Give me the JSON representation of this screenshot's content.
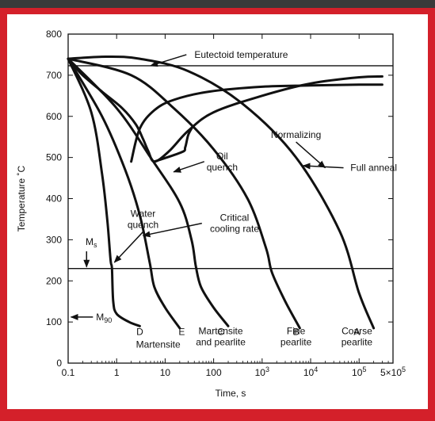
{
  "chart_data": {
    "type": "line",
    "title": "",
    "xlabel": "Time, s",
    "ylabel": "Temperature ˚C",
    "xscale": "log",
    "xlim": [
      0.1,
      500000
    ],
    "ylim": [
      0,
      800
    ],
    "grid": false,
    "x_ticks": [
      {
        "value": 0.1,
        "label": "0.1"
      },
      {
        "value": 1,
        "label": "1"
      },
      {
        "value": 10,
        "label": "10"
      },
      {
        "value": 100,
        "label": "100"
      },
      {
        "value": 1000,
        "label": "10",
        "sup": "3"
      },
      {
        "value": 10000,
        "label": "10",
        "sup": "4"
      },
      {
        "value": 100000,
        "label": "10",
        "sup": "5"
      },
      {
        "value": 500000,
        "label": "5×10",
        "sup": "5"
      }
    ],
    "y_ticks": [
      0,
      100,
      200,
      300,
      400,
      500,
      600,
      700,
      800
    ],
    "reference_lines": [
      {
        "name": "eutectoid",
        "y": 723
      },
      {
        "name": "ms",
        "y": 230
      }
    ],
    "transformation_curves": [
      {
        "name": "start",
        "points": [
          [
            0.1,
            740
          ],
          [
            0.13,
            725
          ],
          [
            0.2,
            700
          ],
          [
            0.5,
            660
          ],
          [
            1.3,
            620
          ],
          [
            2.5,
            580
          ],
          [
            3.5,
            545
          ],
          [
            4.5,
            515
          ],
          [
            6,
            490
          ],
          [
            12,
            515
          ],
          [
            30,
            565
          ],
          [
            100,
            610
          ],
          [
            1000,
            650
          ],
          [
            10000,
            680
          ],
          [
            100000,
            695
          ],
          [
            300000,
            697
          ]
        ]
      },
      {
        "name": "finish",
        "points": [
          [
            2,
            490
          ],
          [
            3,
            570
          ],
          [
            6,
            615
          ],
          [
            15,
            640
          ],
          [
            80,
            660
          ],
          [
            1000,
            672
          ],
          [
            10000,
            675
          ],
          [
            100000,
            677
          ],
          [
            300000,
            677
          ]
        ]
      },
      {
        "name": "nose",
        "points": [
          [
            6,
            490
          ],
          [
            22,
            513
          ],
          [
            26,
            525
          ],
          [
            30,
            555
          ],
          [
            37,
            575
          ]
        ]
      }
    ],
    "cooling_curves": [
      {
        "label": "D",
        "points": [
          [
            0.1,
            740
          ],
          [
            0.3,
            610
          ],
          [
            0.5,
            460
          ],
          [
            0.65,
            340
          ],
          [
            0.75,
            250
          ],
          [
            0.8,
            230
          ],
          [
            0.85,
            150
          ],
          [
            1.0,
            120
          ],
          [
            1.8,
            100
          ],
          [
            3,
            90
          ]
        ]
      },
      {
        "label": "E",
        "points": [
          [
            0.1,
            740
          ],
          [
            0.5,
            600
          ],
          [
            1.5,
            470
          ],
          [
            3,
            360
          ],
          [
            4.8,
            245
          ],
          [
            6,
            185
          ],
          [
            10,
            135
          ],
          [
            20,
            85
          ]
        ]
      },
      {
        "label": "C",
        "points": [
          [
            0.1,
            740
          ],
          [
            1,
            620
          ],
          [
            5,
            500
          ],
          [
            20,
            390
          ],
          [
            35,
            300
          ],
          [
            43,
            235
          ],
          [
            55,
            185
          ],
          [
            100,
            135
          ],
          [
            200,
            90
          ]
        ]
      },
      {
        "label": "B",
        "points": [
          [
            0.1,
            740
          ],
          [
            2,
            700
          ],
          [
            15,
            620
          ],
          [
            100,
            520
          ],
          [
            500,
            400
          ],
          [
            1200,
            280
          ],
          [
            1600,
            220
          ],
          [
            3000,
            150
          ],
          [
            6000,
            85
          ]
        ]
      },
      {
        "label": "A",
        "points": [
          [
            0.1,
            740
          ],
          [
            0.6,
            745
          ],
          [
            3,
            740
          ],
          [
            30,
            710
          ],
          [
            400,
            630
          ],
          [
            5000,
            500
          ],
          [
            40000,
            320
          ],
          [
            100000,
            170
          ],
          [
            200000,
            85
          ]
        ]
      }
    ],
    "curve_labels": [
      {
        "text": "D",
        "x": 3,
        "y": 76
      },
      {
        "text": "E",
        "x": 22,
        "y": 76
      },
      {
        "text": "C",
        "x": 140,
        "y": 76
      },
      {
        "text": "B",
        "x": 5000,
        "y": 76
      },
      {
        "text": "A",
        "x": 90000,
        "y": 76
      }
    ],
    "annotations": [
      {
        "name": "eutectoid-temperature",
        "lines": [
          "Eutectoid temperature"
        ],
        "x": 370,
        "y": 750,
        "arrow_to": [
          5,
          723
        ]
      },
      {
        "name": "normalizing",
        "lines": [
          "Normalizing"
        ],
        "x": 5000,
        "y": 555,
        "arrow_to": [
          20000,
          475
        ]
      },
      {
        "name": "oil-quench",
        "lines": [
          "Oil",
          "quench"
        ],
        "x": 150,
        "y": 490,
        "arrow_to": [
          15,
          465
        ]
      },
      {
        "name": "full-anneal",
        "lines": [
          "Full anneal"
        ],
        "x": 200000,
        "y": 475,
        "arrow_to": [
          7000,
          480
        ]
      },
      {
        "name": "critical-cooling-rate",
        "lines": [
          "Critical",
          "cooling rate"
        ],
        "x": 270,
        "y": 340,
        "arrow_to": [
          3.5,
          310
        ]
      },
      {
        "name": "water-quench",
        "lines": [
          "Water",
          "quench"
        ],
        "x": 3.5,
        "y": 350,
        "arrow_to": [
          0.9,
          245
        ]
      }
    ],
    "ms_label": {
      "text": "M",
      "sub": "s",
      "x": 0.3,
      "y": 295,
      "arrow_to_x": 0.24
    },
    "m90_label": {
      "text": "M",
      "sub": "90",
      "x": 0.55,
      "y": 112,
      "arrow_to_x": 0.18
    },
    "region_labels": [
      {
        "lines": [
          "Martensite"
        ],
        "x": 7.2,
        "y": 45
      },
      {
        "lines": [
          "Martensite",
          "and pearlite"
        ],
        "x": 140,
        "y": 78
      },
      {
        "lines": [
          "Fine",
          "pearlite"
        ],
        "x": 5000,
        "y": 78
      },
      {
        "lines": [
          "Coarse",
          "pearlite"
        ],
        "x": 90000,
        "y": 78
      }
    ]
  }
}
